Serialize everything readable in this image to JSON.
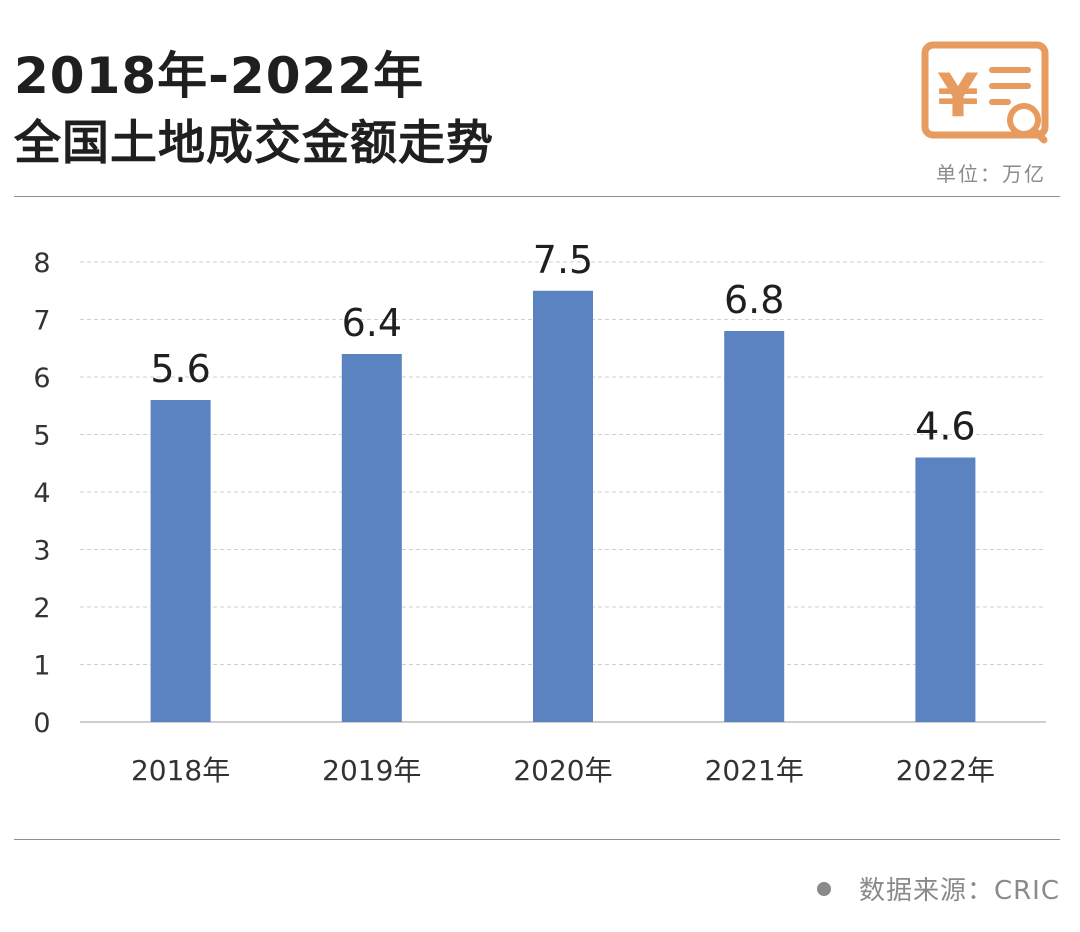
{
  "header": {
    "title_line1": "2018年-2022年",
    "title_line2": "全国土地成交金额走势",
    "unit": "单位：万亿"
  },
  "logo": {
    "icon": "yuan-receipt-search-icon",
    "color": "#E89B5E"
  },
  "footer": {
    "source": "数据来源：CRIC"
  },
  "chart_data": {
    "type": "bar",
    "categories": [
      "2018年",
      "2019年",
      "2020年",
      "2021年",
      "2022年"
    ],
    "values": [
      5.6,
      6.4,
      7.5,
      6.8,
      4.6
    ],
    "value_labels": [
      "5.6",
      "6.4",
      "7.5",
      "6.8",
      "4.6"
    ],
    "yticks": [
      "0",
      "1",
      "2",
      "3",
      "4",
      "5",
      "6",
      "7",
      "8"
    ],
    "ylim": [
      0,
      8
    ],
    "grid": true,
    "bar_color": "#5B83C2",
    "grid_color": "#cfcfcf"
  }
}
